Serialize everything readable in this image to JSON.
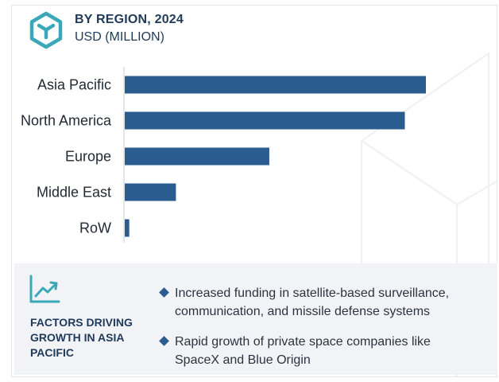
{
  "header": {
    "title": "BY REGION, 2024",
    "subtitle": "USD (MILLION)",
    "logo_icon": "hexagon-logo-icon"
  },
  "colors": {
    "bar": "#2b5c8f",
    "heading": "#1f3a5a",
    "accent": "#3aa8b9",
    "panel": "#f1f3f6"
  },
  "chart_data": {
    "type": "bar",
    "orientation": "horizontal",
    "title": "BY REGION, 2024",
    "subtitle": "USD (MILLION)",
    "categories": [
      "Asia Pacific",
      "North America",
      "Europe",
      "Middle East",
      "RoW"
    ],
    "values": [
      100,
      93,
      48,
      17,
      1.5
    ],
    "xlim": [
      0,
      100
    ],
    "grid": false,
    "legend": "none"
  },
  "factors": {
    "icon": "trend-chart-icon",
    "heading": "FACTORS DRIVING GROWTH IN ASIA PACIFIC",
    "bullets": [
      "Increased funding in satellite-based surveillance, communication, and missile defense systems",
      "Rapid growth of private space companies like SpaceX and Blue Origin"
    ]
  }
}
